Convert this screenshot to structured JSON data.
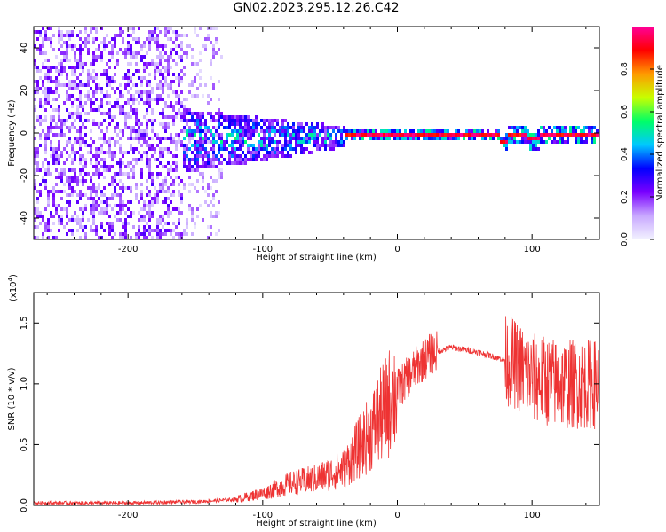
{
  "title": "GN02.2023.295.12.26.C42",
  "chart_data": [
    {
      "type": "heatmap",
      "xlabel": "Height of straight line (km)",
      "ylabel": "Frequency (Hz)",
      "xlim": [
        -270,
        150
      ],
      "ylim": [
        -50,
        50
      ],
      "xticks": [
        -200,
        -100,
        0,
        100
      ],
      "xticklabels": [
        "-200",
        "-100",
        "0",
        "100"
      ],
      "yticks": [
        -40,
        -20,
        0,
        20,
        40
      ],
      "yticklabels": [
        "-40",
        "-20",
        "0",
        "20",
        "40"
      ],
      "colorbar": {
        "label": "Normalized spectral amplitude",
        "range": [
          0,
          1
        ],
        "ticks": [
          0.0,
          0.2,
          0.4,
          0.6,
          0.8
        ],
        "ticklabels": [
          "0.0",
          "0.2",
          "0.4",
          "0.6",
          "0.8"
        ],
        "colors": [
          "#f2f2ff",
          "#c8a8ff",
          "#7a00ff",
          "#0000ff",
          "#00c8ff",
          "#00ff66",
          "#c8ff00",
          "#ff9900",
          "#ff0000",
          "#ff0099"
        ]
      },
      "regions": [
        {
          "x": [
            -270,
            -160
          ],
          "freq_spread": 50,
          "amplitude": 0.15
        },
        {
          "x": [
            -160,
            -130
          ],
          "freq_spread": 50,
          "amplitude": 0.08
        },
        {
          "x": [
            -160,
            -40
          ],
          "freq_spread": 15,
          "amplitude": 0.35
        },
        {
          "x": [
            -40,
            150
          ],
          "freq_spread": 3,
          "amplitude": 0.9
        }
      ]
    },
    {
      "type": "line",
      "xlabel": "Height of straight line (km)",
      "ylabel": "SNR (10 * v/v)",
      "multiplier": "(x10",
      "multiplier_exp": "4",
      "multiplier_close": ")",
      "xlim": [
        -270,
        150
      ],
      "ylim": [
        0,
        1.75
      ],
      "xticks": [
        -200,
        -100,
        0,
        100
      ],
      "xticklabels": [
        "-200",
        "-100",
        "0",
        "100"
      ],
      "yticks": [
        0,
        0.5,
        1.0,
        1.5
      ],
      "yticklabels": [
        "0.0",
        "0.5",
        "1.0",
        "1.5"
      ],
      "color": "#ee3333",
      "profile": [
        {
          "x": -270,
          "y": 0.02
        },
        {
          "x": -200,
          "y": 0.02
        },
        {
          "x": -150,
          "y": 0.03
        },
        {
          "x": -120,
          "y": 0.05
        },
        {
          "x": -100,
          "y": 0.1
        },
        {
          "x": -80,
          "y": 0.18
        },
        {
          "x": -60,
          "y": 0.22
        },
        {
          "x": -40,
          "y": 0.3
        },
        {
          "x": -20,
          "y": 0.6
        },
        {
          "x": 0,
          "y": 0.95
        },
        {
          "x": 15,
          "y": 1.15
        },
        {
          "x": 25,
          "y": 1.25
        },
        {
          "x": 40,
          "y": 1.3
        },
        {
          "x": 60,
          "y": 1.26
        },
        {
          "x": 85,
          "y": 1.18
        },
        {
          "x": 100,
          "y": 1.05
        },
        {
          "x": 120,
          "y": 1.0
        },
        {
          "x": 150,
          "y": 1.0
        }
      ]
    }
  ]
}
